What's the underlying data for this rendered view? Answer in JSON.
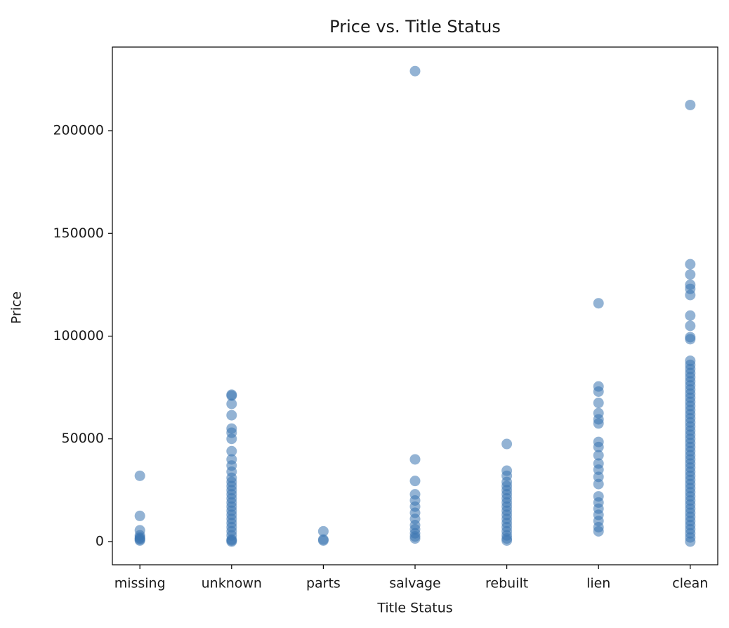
{
  "chart_data": {
    "type": "scatter",
    "title": "Price vs. Title Status",
    "x_label": "Title Status",
    "y_label": "Price",
    "categories": [
      "missing",
      "unknown",
      "parts",
      "salvage",
      "rebuilt",
      "lien",
      "clean"
    ],
    "values": [
      [
        32000,
        12500,
        5500,
        3000,
        2000,
        1500,
        1000,
        500
      ],
      [
        71500,
        71000,
        67000,
        61500,
        55000,
        53000,
        50000,
        44000,
        40000,
        37000,
        34000,
        31000,
        29000,
        27000,
        25000,
        23000,
        21000,
        19000,
        17000,
        15000,
        13000,
        11000,
        9000,
        7000,
        5000,
        3000,
        1000,
        500,
        0
      ],
      [
        5000,
        1000,
        500
      ],
      [
        229000,
        40000,
        29500,
        23000,
        20000,
        17000,
        14000,
        11000,
        8000,
        6000,
        4000,
        2500,
        1500
      ],
      [
        47500,
        34500,
        32000,
        29000,
        27000,
        25000,
        23000,
        21000,
        19000,
        17000,
        15000,
        13000,
        11000,
        9000,
        7000,
        5000,
        3000,
        1500,
        500
      ],
      [
        116000,
        75500,
        73000,
        67500,
        62500,
        59500,
        57500,
        48500,
        46000,
        42000,
        38000,
        35000,
        31500,
        28000,
        22000,
        19000,
        16000,
        13000,
        10000,
        7000,
        5000
      ],
      [
        212500,
        135000,
        130000,
        125000,
        123000,
        120000,
        110000,
        105000,
        99500,
        98500,
        88000,
        86000,
        84000,
        82000,
        80000,
        78000,
        76000,
        74000,
        72000,
        70000,
        68000,
        66000,
        64000,
        62000,
        60000,
        58000,
        56000,
        54000,
        52000,
        50000,
        48000,
        46000,
        44000,
        42000,
        40000,
        38000,
        36000,
        34000,
        32000,
        30000,
        28000,
        26000,
        24000,
        22000,
        20000,
        18000,
        16000,
        14000,
        12000,
        10000,
        8000,
        6000,
        4000,
        2000,
        0
      ]
    ],
    "color": "#3a75b0",
    "ylim": [
      -11300,
      240700
    ],
    "yticks": [
      0,
      50000,
      100000,
      150000,
      200000
    ],
    "grid": false
  }
}
